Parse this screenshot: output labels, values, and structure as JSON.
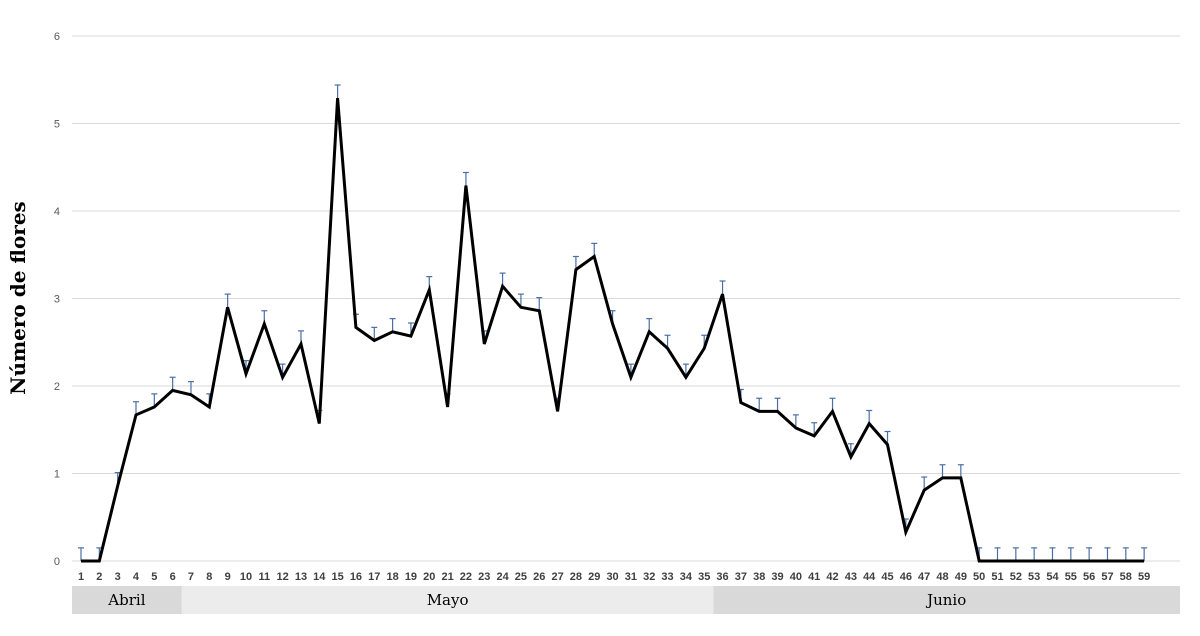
{
  "chart_data": {
    "type": "line",
    "title": "",
    "xlabel": "",
    "ylabel": "Número de flores",
    "ylim": [
      0,
      6
    ],
    "yticks": [
      0,
      1,
      2,
      3,
      4,
      5,
      6
    ],
    "grid": true,
    "legend": "none",
    "x": [
      1,
      2,
      3,
      4,
      5,
      6,
      7,
      8,
      9,
      10,
      11,
      12,
      13,
      14,
      15,
      16,
      17,
      18,
      19,
      20,
      21,
      22,
      23,
      24,
      25,
      26,
      27,
      28,
      29,
      30,
      31,
      32,
      33,
      34,
      35,
      36,
      37,
      38,
      39,
      40,
      41,
      42,
      43,
      44,
      45,
      46,
      47,
      48,
      49,
      50,
      51,
      52,
      53,
      54,
      55,
      56,
      57,
      58,
      59
    ],
    "series": [
      {
        "values": [
          0,
          0,
          0.86,
          1.67,
          1.76,
          1.95,
          1.9,
          1.76,
          2.9,
          2.14,
          2.71,
          2.1,
          2.48,
          1.57,
          5.29,
          2.67,
          2.52,
          2.62,
          2.57,
          3.1,
          1.76,
          4.29,
          2.48,
          3.14,
          2.9,
          2.86,
          1.71,
          3.33,
          3.48,
          2.71,
          2.1,
          2.62,
          2.43,
          2.1,
          2.43,
          3.05,
          1.81,
          1.71,
          1.71,
          1.52,
          1.43,
          1.71,
          1.19,
          1.57,
          1.33,
          0.33,
          0.81,
          0.95,
          0.95,
          0,
          0,
          0,
          0,
          0,
          0,
          0,
          0,
          0,
          0
        ],
        "errors": [
          0.15,
          0.15,
          0.15,
          0.15,
          0.15,
          0.15,
          0.15,
          0.15,
          0.15,
          0.15,
          0.15,
          0.15,
          0.15,
          0.15,
          0.15,
          0.15,
          0.15,
          0.15,
          0.15,
          0.15,
          0.15,
          0.15,
          0.15,
          0.15,
          0.15,
          0.15,
          0.15,
          0.15,
          0.15,
          0.15,
          0.15,
          0.15,
          0.15,
          0.15,
          0.15,
          0.15,
          0.15,
          0.15,
          0.15,
          0.15,
          0.15,
          0.15,
          0.15,
          0.15,
          0.15,
          0.15,
          0.15,
          0.15,
          0.15,
          0.15,
          0.15,
          0.15,
          0.15,
          0.15,
          0.15,
          0.15,
          0.15,
          0.15,
          0.15
        ]
      }
    ],
    "months": [
      {
        "label": "Abril",
        "from": 1,
        "to": 6
      },
      {
        "label": "Mayo",
        "from": 7,
        "to": 35
      },
      {
        "label": "Junio",
        "from": 36,
        "to": 59
      }
    ]
  },
  "colors": {
    "line": "#000000",
    "error_bar": "#4a6fa5",
    "grid": "#d9d9d9",
    "month_band_dark": "#d9d9d9",
    "month_band_light": "#ececec"
  }
}
